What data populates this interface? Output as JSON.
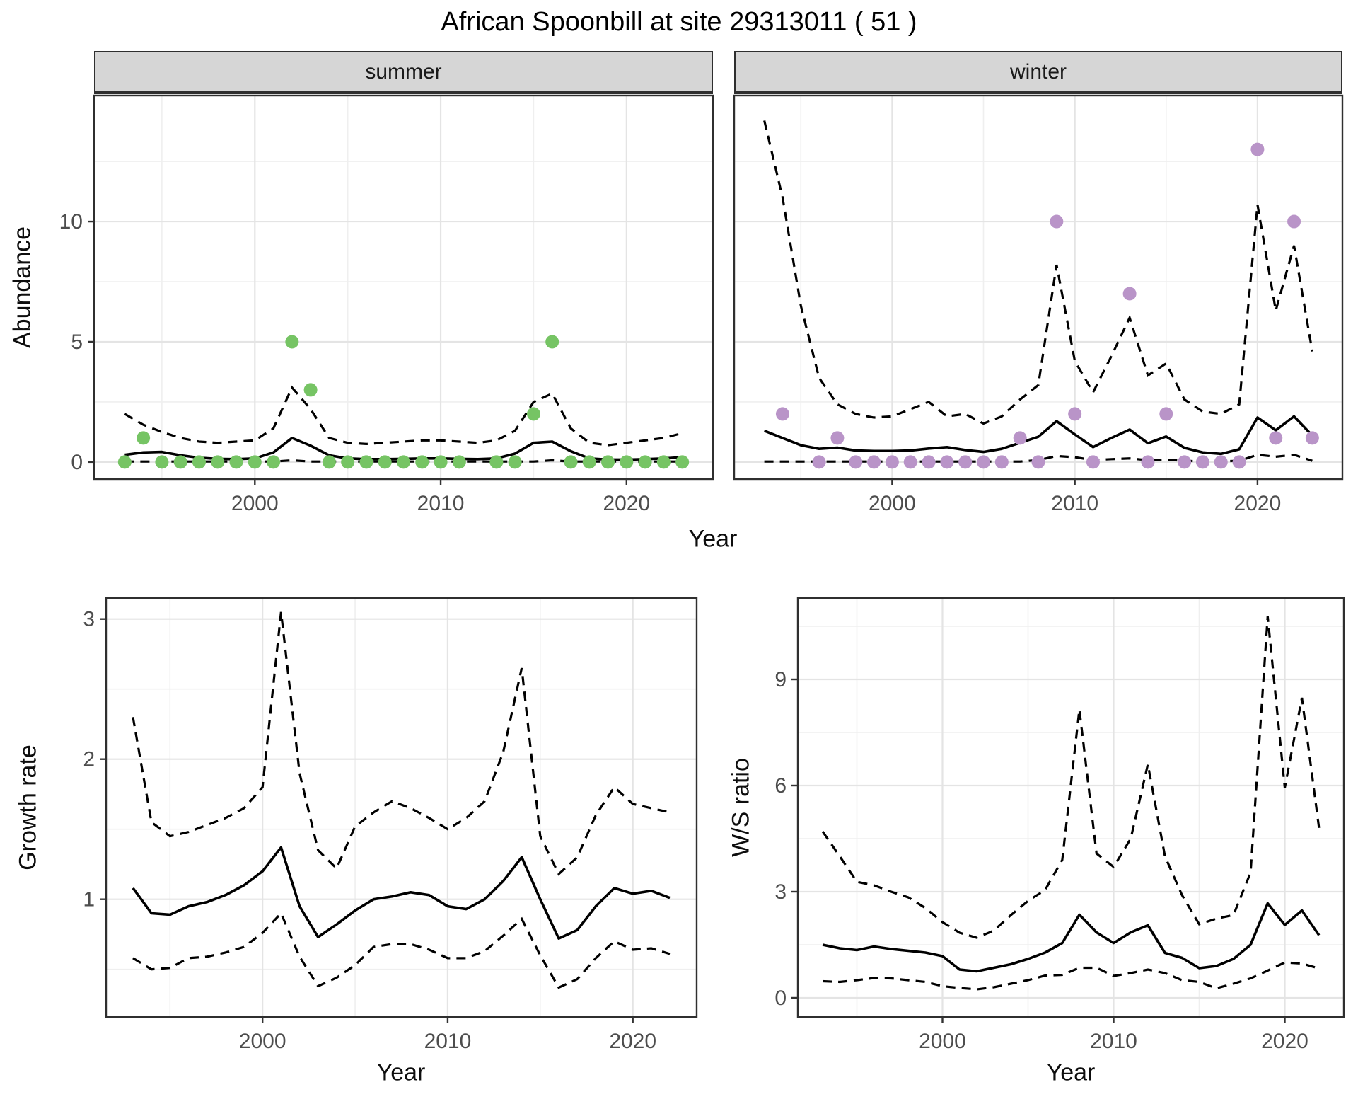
{
  "title": "African Spoonbill at site 29313011 ( 51 )",
  "facets": {
    "summer": "summer",
    "winter": "winter"
  },
  "axes": {
    "abundance_label": "Abundance",
    "year_label_top": "Year",
    "growth_label": "Growth rate",
    "year_label_growth": "Year",
    "ws_label": "W/S ratio",
    "year_label_ws": "Year"
  },
  "colors": {
    "summer_point": "#76c464",
    "winter_point": "#b994c8",
    "line": "#000000",
    "strip_fill": "#d6d6d6",
    "panel_border": "#2f2f2f",
    "grid_major": "#e4e4e4",
    "grid_minor": "#efefef",
    "tick_text": "#4d4d4d"
  },
  "chart_data": [
    {
      "id": "abundance-summer",
      "type": "line+scatter",
      "facet_label": "summer",
      "xlabel": "Year",
      "ylabel": "Abundance",
      "legend_position": "none",
      "grid": true,
      "xlim": [
        1991.35,
        2024.65
      ],
      "ylim": [
        -0.71,
        15.24
      ],
      "x_ticks": [
        2000,
        2010,
        2020
      ],
      "x_minor": [
        1995,
        2005,
        2015
      ],
      "y_ticks": [
        0,
        5,
        10
      ],
      "y_minor": [
        2.5,
        7.5,
        12.5
      ],
      "points": {
        "x": [
          1993,
          1994,
          1995,
          1996,
          1997,
          1998,
          1999,
          2000,
          2001,
          2002,
          2003,
          2004,
          2005,
          2006,
          2007,
          2008,
          2009,
          2010,
          2011,
          2013,
          2014,
          2015,
          2016,
          2017,
          2018,
          2019,
          2020,
          2021,
          2022,
          2023
        ],
        "y": [
          0,
          1,
          0,
          0,
          0,
          0,
          0,
          0,
          0,
          5,
          3,
          0,
          0,
          0,
          0,
          0,
          0,
          0,
          0,
          0,
          0,
          2,
          5,
          0,
          0,
          0,
          0,
          0,
          0,
          0
        ]
      },
      "fit_x": [
        1993,
        1994,
        1995,
        1996,
        1997,
        1998,
        1999,
        2000,
        2001,
        2002,
        2003,
        2004,
        2005,
        2006,
        2007,
        2008,
        2009,
        2010,
        2011,
        2012,
        2013,
        2014,
        2015,
        2016,
        2017,
        2018,
        2019,
        2020,
        2021,
        2022,
        2023
      ],
      "fit": [
        0.3,
        0.4,
        0.42,
        0.28,
        0.18,
        0.13,
        0.12,
        0.15,
        0.4,
        1.0,
        0.68,
        0.28,
        0.15,
        0.12,
        0.12,
        0.13,
        0.15,
        0.15,
        0.13,
        0.12,
        0.15,
        0.35,
        0.8,
        0.85,
        0.45,
        0.15,
        0.1,
        0.1,
        0.12,
        0.15,
        0.2
      ],
      "ci_upper": [
        2.0,
        1.55,
        1.25,
        1.0,
        0.85,
        0.8,
        0.85,
        0.9,
        1.4,
        3.1,
        2.2,
        1.0,
        0.8,
        0.75,
        0.8,
        0.85,
        0.9,
        0.9,
        0.85,
        0.8,
        0.9,
        1.3,
        2.5,
        2.85,
        1.4,
        0.8,
        0.7,
        0.8,
        0.9,
        1.0,
        1.2
      ],
      "ci_lower": [
        0.02,
        0.02,
        0.02,
        0.02,
        0.02,
        0.02,
        0.02,
        0.02,
        0.02,
        0.07,
        0.02,
        0.02,
        0.02,
        0.02,
        0.02,
        0.02,
        0.02,
        0.02,
        0.02,
        0.02,
        0.02,
        0.02,
        0.02,
        0.07,
        0.02,
        0.02,
        0.02,
        0.02,
        0.02,
        0.02,
        0.02
      ]
    },
    {
      "id": "abundance-winter",
      "type": "line+scatter",
      "facet_label": "winter",
      "xlabel": "Year",
      "ylabel": "Abundance",
      "legend_position": "none",
      "grid": true,
      "xlim": [
        1991.35,
        2024.65
      ],
      "ylim": [
        -0.71,
        15.24
      ],
      "x_ticks": [
        2000,
        2010,
        2020
      ],
      "x_minor": [
        1995,
        2005,
        2015
      ],
      "y_ticks": [
        0,
        5,
        10
      ],
      "y_minor": [
        2.5,
        7.5,
        12.5
      ],
      "points": {
        "x": [
          1994,
          1996,
          1997,
          1998,
          1999,
          2000,
          2001,
          2002,
          2003,
          2004,
          2005,
          2006,
          2007,
          2008,
          2009,
          2010,
          2011,
          2013,
          2014,
          2015,
          2016,
          2017,
          2018,
          2019,
          2020,
          2021,
          2022,
          2023
        ],
        "y": [
          2,
          0,
          1,
          0,
          0,
          0,
          0,
          0,
          0,
          0,
          0,
          0,
          1,
          0,
          10,
          2,
          0,
          7,
          0,
          2,
          0,
          0,
          0,
          0,
          13,
          1,
          10,
          1
        ]
      },
      "fit_x": [
        1993,
        1994,
        1995,
        1996,
        1997,
        1998,
        1999,
        2000,
        2001,
        2002,
        2003,
        2004,
        2005,
        2006,
        2007,
        2008,
        2009,
        2010,
        2011,
        2012,
        2013,
        2014,
        2015,
        2016,
        2017,
        2018,
        2019,
        2020,
        2021,
        2022,
        2023
      ],
      "fit": [
        1.3,
        1.0,
        0.7,
        0.55,
        0.6,
        0.48,
        0.46,
        0.46,
        0.48,
        0.56,
        0.62,
        0.5,
        0.42,
        0.55,
        0.8,
        1.05,
        1.7,
        1.15,
        0.62,
        1.0,
        1.35,
        0.78,
        1.06,
        0.59,
        0.4,
        0.34,
        0.53,
        1.85,
        1.32,
        1.9,
        1.1
      ],
      "ci_upper": [
        14.2,
        11.0,
        6.5,
        3.5,
        2.4,
        2.0,
        1.85,
        1.9,
        2.2,
        2.5,
        1.9,
        2.0,
        1.6,
        1.9,
        2.6,
        3.2,
        8.2,
        4.2,
        2.9,
        4.4,
        6.0,
        3.6,
        4.1,
        2.6,
        2.1,
        2.0,
        2.4,
        10.7,
        6.3,
        9.0,
        4.6
      ],
      "ci_lower": [
        0.02,
        0.02,
        0.02,
        0.02,
        0.02,
        0.02,
        0.02,
        0.02,
        0.02,
        0.02,
        0.02,
        0.02,
        0.02,
        0.02,
        0.02,
        0.08,
        0.25,
        0.2,
        0.08,
        0.12,
        0.15,
        0.08,
        0.1,
        0.05,
        0.03,
        0.03,
        0.05,
        0.3,
        0.22,
        0.3,
        0.05
      ]
    },
    {
      "id": "growth-rate",
      "type": "line",
      "facet_label": "",
      "xlabel": "Year",
      "ylabel": "Growth rate",
      "legend_position": "none",
      "grid": true,
      "xlim": [
        1991.55,
        2023.45
      ],
      "ylim": [
        0.16,
        3.15
      ],
      "x_ticks": [
        2000,
        2010,
        2020
      ],
      "x_minor": [
        1995,
        2005,
        2015
      ],
      "y_ticks": [
        1,
        2,
        3
      ],
      "y_minor": [
        0.5,
        1.5,
        2.5
      ],
      "points": {
        "x": [],
        "y": []
      },
      "fit_x": [
        1993,
        1994,
        1995,
        1996,
        1997,
        1998,
        1999,
        2000,
        2001,
        2002,
        2003,
        2004,
        2005,
        2006,
        2007,
        2008,
        2009,
        2010,
        2011,
        2012,
        2013,
        2014,
        2015,
        2016,
        2017,
        2018,
        2019,
        2020,
        2021,
        2022
      ],
      "fit": [
        1.08,
        0.9,
        0.89,
        0.95,
        0.98,
        1.03,
        1.1,
        1.2,
        1.37,
        0.95,
        0.73,
        0.82,
        0.92,
        1.0,
        1.02,
        1.05,
        1.03,
        0.95,
        0.93,
        1.0,
        1.13,
        1.3,
        1.0,
        0.72,
        0.78,
        0.95,
        1.08,
        1.04,
        1.06,
        1.01
      ],
      "ci_upper": [
        2.3,
        1.55,
        1.45,
        1.48,
        1.53,
        1.58,
        1.65,
        1.8,
        3.05,
        1.9,
        1.35,
        1.22,
        1.52,
        1.62,
        1.7,
        1.65,
        1.58,
        1.5,
        1.58,
        1.7,
        2.05,
        2.65,
        1.45,
        1.18,
        1.3,
        1.6,
        1.8,
        1.68,
        1.65,
        1.62
      ],
      "ci_lower": [
        0.58,
        0.5,
        0.51,
        0.58,
        0.59,
        0.62,
        0.66,
        0.76,
        0.9,
        0.59,
        0.38,
        0.44,
        0.53,
        0.66,
        0.68,
        0.68,
        0.64,
        0.58,
        0.58,
        0.63,
        0.74,
        0.86,
        0.6,
        0.37,
        0.43,
        0.58,
        0.7,
        0.64,
        0.65,
        0.61
      ]
    },
    {
      "id": "ws-ratio",
      "type": "line",
      "facet_label": "",
      "xlabel": "Year",
      "ylabel": "W/S ratio",
      "legend_position": "none",
      "grid": true,
      "xlim": [
        1991.55,
        2023.45
      ],
      "ylim": [
        -0.54,
        11.3
      ],
      "x_ticks": [
        2000,
        2010,
        2020
      ],
      "x_minor": [
        1995,
        2005,
        2015
      ],
      "y_ticks": [
        0,
        3,
        6,
        9
      ],
      "y_minor": [
        1.5,
        4.5,
        7.5,
        10.5
      ],
      "points": {
        "x": [],
        "y": []
      },
      "fit_x": [
        1993,
        1994,
        1995,
        1996,
        1997,
        1998,
        1999,
        2000,
        2001,
        2002,
        2003,
        2004,
        2005,
        2006,
        2007,
        2008,
        2009,
        2010,
        2011,
        2012,
        2013,
        2014,
        2015,
        2016,
        2017,
        2018,
        2019,
        2020,
        2021,
        2022
      ],
      "fit": [
        1.5,
        1.4,
        1.35,
        1.45,
        1.38,
        1.33,
        1.28,
        1.18,
        0.8,
        0.75,
        0.85,
        0.95,
        1.1,
        1.28,
        1.55,
        2.35,
        1.85,
        1.55,
        1.85,
        2.05,
        1.27,
        1.13,
        0.84,
        0.9,
        1.1,
        1.5,
        2.67,
        2.06,
        2.47,
        1.77
      ],
      "ci_upper": [
        4.7,
        4.0,
        3.28,
        3.18,
        3.0,
        2.84,
        2.54,
        2.14,
        1.84,
        1.7,
        1.9,
        2.34,
        2.74,
        3.05,
        3.9,
        8.15,
        4.08,
        3.7,
        4.5,
        6.6,
        4.0,
        2.9,
        2.08,
        2.24,
        2.34,
        3.54,
        10.78,
        5.94,
        8.48,
        4.8
      ],
      "ci_lower": [
        0.47,
        0.45,
        0.5,
        0.56,
        0.55,
        0.5,
        0.45,
        0.33,
        0.28,
        0.24,
        0.3,
        0.4,
        0.5,
        0.63,
        0.65,
        0.85,
        0.85,
        0.62,
        0.7,
        0.8,
        0.7,
        0.5,
        0.45,
        0.27,
        0.4,
        0.55,
        0.77,
        1.0,
        0.97,
        0.83
      ]
    }
  ]
}
